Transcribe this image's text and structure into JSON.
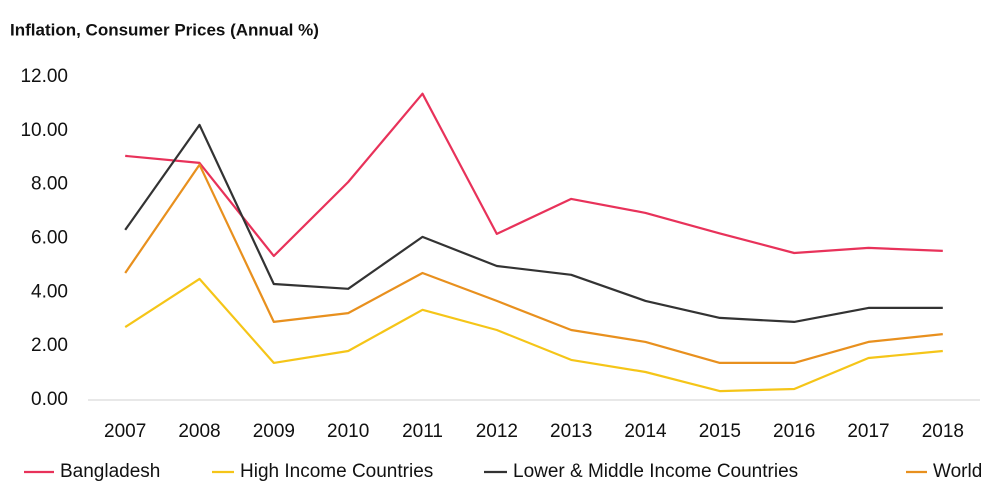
{
  "chart_data": {
    "type": "line",
    "title": "Inflation, Consumer Prices (Annual %)",
    "categories": [
      "2007",
      "2008",
      "2009",
      "2010",
      "2011",
      "2012",
      "2013",
      "2014",
      "2015",
      "2016",
      "2017",
      "2018"
    ],
    "series": [
      {
        "name": "Bangladesh",
        "color": "#e8325a",
        "values": [
          9.07,
          8.81,
          5.35,
          8.1,
          11.38,
          6.17,
          7.47,
          6.95,
          6.19,
          5.46,
          5.65,
          5.54
        ]
      },
      {
        "name": "High Income Countries",
        "color": "#f5c518",
        "values": [
          2.71,
          4.5,
          1.38,
          1.82,
          3.35,
          2.6,
          1.49,
          1.04,
          0.33,
          0.41,
          1.56,
          1.82
        ]
      },
      {
        "name": "Lower & Middle Income Countries",
        "color": "#333333",
        "values": [
          6.32,
          10.22,
          4.31,
          4.13,
          6.06,
          4.98,
          4.65,
          3.68,
          3.05,
          2.9,
          3.42,
          3.42
        ]
      },
      {
        "name": "World",
        "color": "#e8901e",
        "values": [
          4.72,
          8.74,
          2.9,
          3.23,
          4.72,
          3.68,
          2.6,
          2.16,
          1.38,
          1.38,
          2.16,
          2.45
        ]
      }
    ],
    "ylim": [
      0,
      12
    ],
    "yticks": [
      {
        "value": 0,
        "label": "0.00"
      },
      {
        "value": 2,
        "label": "2.00"
      },
      {
        "value": 4,
        "label": "4.00"
      },
      {
        "value": 6,
        "label": "6.00"
      },
      {
        "value": 8,
        "label": "8.00"
      },
      {
        "value": 10,
        "label": "10.00"
      },
      {
        "value": 12,
        "label": "12.00"
      }
    ],
    "grid": false,
    "legend": "bottom"
  }
}
